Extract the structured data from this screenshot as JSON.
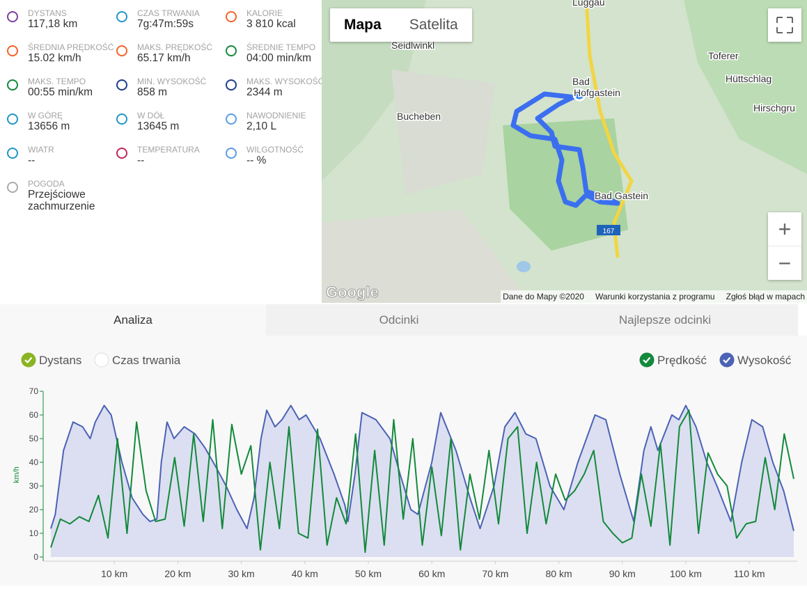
{
  "stats": [
    {
      "label": "DYSTANS",
      "value": "117,18 km"
    },
    {
      "label": "CZAS TRWANIA",
      "value": "7g:47m:59s"
    },
    {
      "label": "KALORIE",
      "value": "3 810 kcal"
    },
    {
      "label": "ŚREDNIA PRĘDKOŚĆ",
      "value": "15.02 km/h"
    },
    {
      "label": "MAKS. PRĘDKOŚĆ",
      "value": "65.17 km/h"
    },
    {
      "label": "ŚREDNIE TEMPO",
      "value": "04:00 min/km"
    },
    {
      "label": "MAKS. TEMPO",
      "value": "00:55 min/km"
    },
    {
      "label": "MIN. WYSOKOŚĆ",
      "value": "858 m"
    },
    {
      "label": "MAKS. WYSOKOŚĆ",
      "value": "2344 m"
    },
    {
      "label": "W GÓRĘ",
      "value": "13656 m"
    },
    {
      "label": "W DÓŁ",
      "value": "13645 m"
    },
    {
      "label": "NAWODNIENIE",
      "value": "2,10 L"
    },
    {
      "label": "WIATR",
      "value": "--"
    },
    {
      "label": "TEMPERATURA",
      "value": "--"
    },
    {
      "label": "WILGOTNOŚĆ",
      "value": "-- %"
    },
    {
      "label": "POGODA",
      "value": "Przejściowe zachmurzenie"
    }
  ],
  "map": {
    "tabs": [
      "Mapa",
      "Satelita"
    ],
    "places": [
      "Luggau",
      "Seidlwinkl",
      "Toferer",
      "Hüttschlag",
      "Hirschgru",
      "Bad",
      "Hofgastein",
      "Bucheben",
      "Bad Gastein"
    ],
    "road": "167",
    "logo": "Google",
    "footer": [
      "Dane do Mapy ©2020",
      "Warunki korzystania z programu",
      "Zgłoś błąd w mapach"
    ],
    "zoom": [
      "+",
      "−"
    ]
  },
  "tabs": [
    "Analiza",
    "Odcinki",
    "Najlepsze odcinki"
  ],
  "toggles": [
    "Dystans",
    "Czas trwania"
  ],
  "chart_data": {
    "type": "line",
    "y_label": "km/h",
    "xlim": [
      0,
      117
    ],
    "ylim": [
      0,
      70
    ],
    "yticks": [
      0,
      10,
      20,
      30,
      40,
      50,
      60,
      70
    ],
    "xticks": [
      {
        "value": 10,
        "label": "10 km"
      },
      {
        "value": 20,
        "label": "20 km"
      },
      {
        "value": 30,
        "label": "30 km"
      },
      {
        "value": 40,
        "label": "40 km"
      },
      {
        "value": 50,
        "label": "50 km"
      },
      {
        "value": 60,
        "label": "60 km"
      },
      {
        "value": 70,
        "label": "70 km"
      },
      {
        "value": 80,
        "label": "80 km"
      },
      {
        "value": 90,
        "label": "90 km"
      },
      {
        "value": 100,
        "label": "100 km"
      },
      {
        "value": 110,
        "label": "110 km"
      }
    ],
    "series": [
      {
        "name": "Prędkość",
        "color": "#12893b",
        "x": [
          0,
          1.5,
          3,
          4.5,
          6,
          7.5,
          9,
          10.5,
          12,
          13.5,
          15,
          16.5,
          18,
          19.5,
          21,
          22.5,
          24,
          25.5,
          27,
          28.5,
          30,
          31.5,
          33,
          34.5,
          36,
          37.5,
          39,
          40.5,
          42,
          43.5,
          45,
          46.5,
          48,
          49.5,
          51,
          52.5,
          54,
          55.5,
          57,
          58.5,
          60,
          61.5,
          63,
          64.5,
          66,
          67.5,
          69,
          70.5,
          72,
          73.5,
          75,
          76.5,
          78,
          79.5,
          81,
          82.5,
          84,
          85.5,
          87,
          88.5,
          90,
          91.5,
          93,
          94.5,
          96,
          97.5,
          99,
          100.5,
          102,
          103.5,
          105,
          106.5,
          108,
          109.5,
          111,
          112.5,
          114,
          115.5,
          117
        ],
        "values": [
          4,
          16,
          14,
          17,
          15,
          26,
          8,
          50,
          10,
          57,
          28,
          15,
          16,
          42,
          13,
          52,
          15,
          58,
          12,
          56,
          35,
          47,
          3,
          40,
          12,
          55,
          10,
          8,
          54,
          5,
          25,
          14,
          52,
          2,
          45,
          5,
          58,
          16,
          50,
          5,
          38,
          9,
          50,
          3,
          35,
          16,
          45,
          14,
          50,
          55,
          10,
          40,
          14,
          35,
          24,
          28,
          35,
          45,
          15,
          10,
          6,
          8,
          35,
          13,
          48,
          5,
          55,
          62,
          10,
          44,
          35,
          30,
          8,
          14,
          15,
          42,
          20,
          52,
          33
        ]
      },
      {
        "name": "Wysokość",
        "color": "#4b62b5",
        "fill": "#dcdff1",
        "x": [
          0,
          0.7,
          2,
          3.5,
          5,
          6.2,
          7,
          8.4,
          9.5,
          11.2,
          12.8,
          14.5,
          15.6,
          16.7,
          17.4,
          18.3,
          19.4,
          21,
          22.7,
          24.3,
          26,
          27.6,
          29.3,
          30.9,
          32,
          33.1,
          34,
          35.3,
          36.4,
          37.8,
          39.1,
          40.2,
          42.4,
          44.6,
          46.3,
          46.8,
          47.9,
          49,
          51.2,
          53.4,
          55,
          56.7,
          57.8,
          60,
          61.4,
          63.8,
          66,
          67.6,
          69.8,
          71.5,
          73.1,
          74.8,
          76.4,
          78.6,
          80.8,
          83,
          85.7,
          87.4,
          89.6,
          91.8,
          93.4,
          94.5,
          95.6,
          97.8,
          98.9,
          100,
          101.6,
          103.3,
          104.9,
          107.1,
          108.8,
          110.4,
          112.1,
          113.7,
          115.4,
          117
        ],
        "values": [
          12,
          18,
          45,
          57,
          55,
          50,
          57,
          64,
          60,
          40,
          25,
          18,
          15,
          16,
          40,
          57,
          50,
          55,
          52,
          46,
          38,
          30,
          20,
          12,
          25,
          50,
          62,
          55,
          58,
          64,
          58,
          60,
          50,
          35,
          22,
          15,
          35,
          61,
          58,
          50,
          35,
          20,
          18,
          40,
          61,
          45,
          25,
          12,
          30,
          55,
          61,
          52,
          50,
          30,
          20,
          40,
          60,
          58,
          35,
          15,
          45,
          55,
          45,
          60,
          58,
          64,
          55,
          40,
          30,
          15,
          40,
          58,
          55,
          40,
          28,
          11
        ]
      }
    ]
  }
}
